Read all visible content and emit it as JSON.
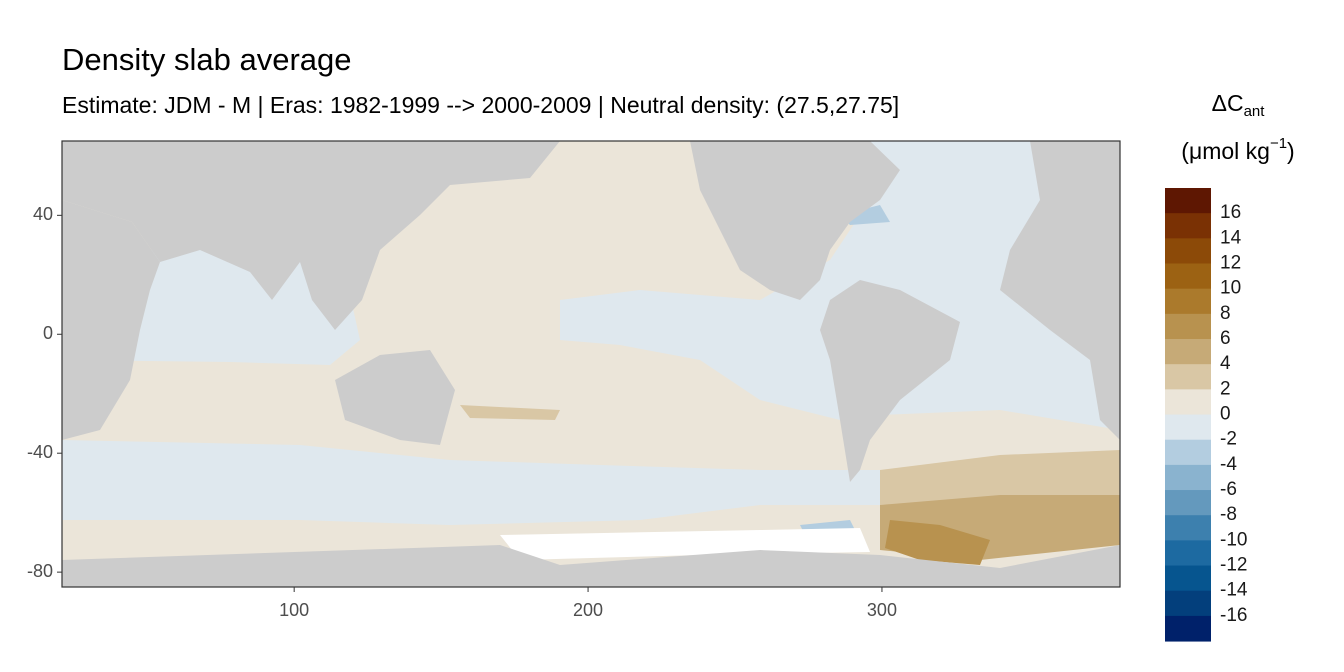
{
  "chart_data": {
    "type": "heatmap",
    "title": "Density slab average",
    "subtitle": "Estimate: JDM - M | Eras: 1982-1999 --> 2000-2009 | Neutral density: (27.5,27.75]",
    "xlim": [
      21,
      381
    ],
    "xticks": [
      100,
      200,
      300
    ],
    "ylim": [
      -85,
      65
    ],
    "yticks": [
      40,
      0,
      -40,
      -80
    ],
    "legend": {
      "title": [
        "ΔC",
        "ant",
        "(μmol kg",
        "−1",
        ")"
      ],
      "breaks": [
        16,
        14,
        12,
        10,
        8,
        6,
        4,
        2,
        0,
        -2,
        -4,
        -6,
        -8,
        -10,
        -12,
        -14,
        -16
      ],
      "colors": [
        "#5e1702",
        "#7a3104",
        "#8c4a08",
        "#9c6213",
        "#ab7a2c",
        "#b8924f",
        "#c6aa77",
        "#d9c7a5",
        "#ebe5d9",
        "#dfe8ee",
        "#b3cde0",
        "#8ab3cf",
        "#6499bd",
        "#3d80ae",
        "#1d6aa1",
        "#06558f",
        "#033f7c",
        "#00216a"
      ]
    }
  }
}
